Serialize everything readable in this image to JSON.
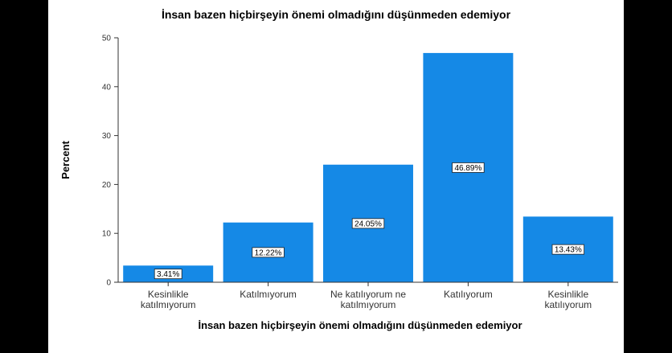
{
  "chart_data": {
    "type": "bar",
    "title": "İnsan bazen hiçbirşeyin önemi olmadığını düşünmeden edemiyor",
    "xlabel": "İnsan bazen hiçbirşeyin önemi olmadığını düşünmeden edemiyor",
    "ylabel": "Percent",
    "ylim": [
      0,
      50
    ],
    "yticks": [
      0,
      10,
      20,
      30,
      40,
      50
    ],
    "grid": false,
    "categories": [
      [
        "Kesinlikle",
        "katılmıyorum"
      ],
      [
        "Katılmıyorum"
      ],
      [
        "Ne katılıyorum ne",
        "katılmıyorum"
      ],
      [
        "Katılıyorum"
      ],
      [
        "Kesinlikle",
        "katılıyorum"
      ]
    ],
    "values": [
      3.41,
      12.22,
      24.05,
      46.89,
      13.43
    ],
    "data_labels": [
      "3.41%",
      "12.22%",
      "24.05%",
      "46.89%",
      "13.43%"
    ],
    "bar_color": "#1589e6"
  }
}
